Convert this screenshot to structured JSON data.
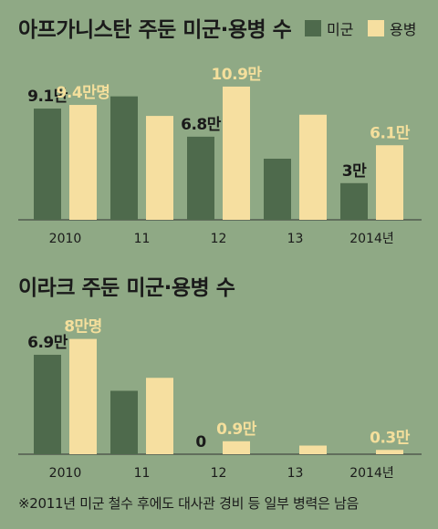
{
  "colors": {
    "background": "#8fa985",
    "us_troops": "#4e6a4c",
    "contractors": "#f6dfa0",
    "contractor_label": "#f4df9c",
    "text": "#1a1a1a",
    "axis": "#333333"
  },
  "legend": {
    "series1": "미군",
    "series2": "용병"
  },
  "footnote": "※2011년 미군 철수 후에도 대사관 경비 등 일부 병력은 남음",
  "chart_data": [
    {
      "type": "bar",
      "title": "아프가니스탄 주둔 미군·용병 수",
      "categories": [
        "2010",
        "11",
        "12",
        "13",
        "2014년"
      ],
      "unit": "만",
      "ylim": [
        0,
        12
      ],
      "series": [
        {
          "name": "미군",
          "values": [
            9.1,
            10.1,
            6.8,
            5.0,
            3.0
          ],
          "labels": [
            "9.1만",
            "",
            "6.8만",
            "",
            "3만"
          ]
        },
        {
          "name": "용병",
          "values": [
            9.4,
            8.5,
            10.9,
            8.6,
            6.1
          ],
          "labels": [
            "9.4만명",
            "",
            "10.9만",
            "",
            "6.1만"
          ]
        }
      ]
    },
    {
      "type": "bar",
      "title": "이라크 주둔 미군·용병 수",
      "categories": [
        "2010",
        "11",
        "12",
        "13",
        "2014년"
      ],
      "unit": "만",
      "ylim": [
        0,
        9
      ],
      "series": [
        {
          "name": "미군",
          "values": [
            6.9,
            4.4,
            0,
            0,
            0
          ],
          "labels": [
            "6.9만",
            "",
            "0",
            "",
            ""
          ]
        },
        {
          "name": "용병",
          "values": [
            8.0,
            5.3,
            0.9,
            0.6,
            0.3
          ],
          "labels": [
            "8만명",
            "",
            "0.9만",
            "",
            "0.3만"
          ]
        }
      ]
    }
  ]
}
